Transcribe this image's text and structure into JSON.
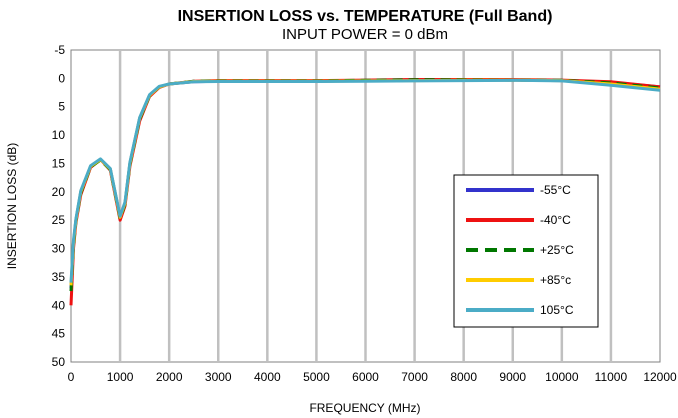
{
  "chart_data": {
    "type": "line",
    "title": "INSERTION LOSS vs. TEMPERATURE (Full Band)",
    "subtitle": "INPUT POWER = 0 dBm",
    "xlabel": "FREQUENCY (MHz)",
    "ylabel": "INSERTION LOSS (dB)",
    "xlim": [
      0,
      12000
    ],
    "ylim": [
      -5,
      50
    ],
    "y_inverted": true,
    "x_ticks": [
      0,
      1000,
      2000,
      3000,
      4000,
      5000,
      6000,
      7000,
      8000,
      9000,
      10000,
      11000,
      12000
    ],
    "y_ticks": [
      -5,
      0,
      5,
      10,
      15,
      20,
      25,
      30,
      35,
      40,
      45,
      50
    ],
    "grid": "vertical",
    "legend_position": "right",
    "series": [
      {
        "name": "-55°C",
        "color": "#3333CC",
        "dash": "solid",
        "x": [
          0,
          50,
          100,
          200,
          400,
          600,
          800,
          1000,
          1100,
          1200,
          1400,
          1600,
          1800,
          2000,
          2500,
          3000,
          4000,
          5000,
          6000,
          7000,
          8000,
          9000,
          10000,
          11000,
          12000
        ],
        "y": [
          37,
          29,
          25,
          20,
          15.5,
          14.3,
          16,
          24.5,
          22,
          15,
          7,
          3,
          1.5,
          1,
          0.6,
          0.5,
          0.5,
          0.5,
          0.4,
          0.3,
          0.3,
          0.3,
          0.4,
          0.7,
          1.5
        ]
      },
      {
        "name": "-40°C",
        "color": "#EE1111",
        "dash": "solid",
        "x": [
          0,
          50,
          100,
          200,
          400,
          600,
          800,
          1000,
          1100,
          1200,
          1400,
          1600,
          1800,
          2000,
          2500,
          3000,
          4000,
          5000,
          6000,
          7000,
          8000,
          9000,
          10000,
          11000,
          12000
        ],
        "y": [
          40,
          30,
          25.5,
          20.5,
          15.7,
          14.3,
          16.2,
          25,
          22.5,
          15.5,
          7.5,
          3.2,
          1.6,
          1,
          0.5,
          0.4,
          0.4,
          0.4,
          0.3,
          0.2,
          0.2,
          0.2,
          0.3,
          0.6,
          1.5
        ]
      },
      {
        "name": "+25°C",
        "color": "#007700",
        "dash": "dashed",
        "x": [
          0,
          50,
          100,
          200,
          400,
          600,
          800,
          1000,
          1100,
          1200,
          1400,
          1600,
          1800,
          2000,
          2500,
          3000,
          4000,
          5000,
          6000,
          7000,
          8000,
          9000,
          10000,
          11000,
          12000
        ],
        "y": [
          37.5,
          29.5,
          25.2,
          20.2,
          15.6,
          14.4,
          16.1,
          24.7,
          22.2,
          15.2,
          7.2,
          3.1,
          1.5,
          1,
          0.5,
          0.45,
          0.45,
          0.45,
          0.35,
          0.25,
          0.25,
          0.3,
          0.35,
          0.8,
          1.7
        ]
      },
      {
        "name": "+85°c",
        "color": "#FFCC00",
        "dash": "solid",
        "x": [
          0,
          50,
          100,
          200,
          400,
          600,
          800,
          1000,
          1100,
          1200,
          1400,
          1600,
          1800,
          2000,
          2500,
          3000,
          4000,
          5000,
          6000,
          7000,
          8000,
          9000,
          10000,
          11000,
          12000
        ],
        "y": [
          36.5,
          29,
          25,
          20,
          15.5,
          14.3,
          16,
          24.5,
          22,
          15,
          7,
          3,
          1.5,
          1,
          0.55,
          0.5,
          0.5,
          0.5,
          0.45,
          0.4,
          0.35,
          0.3,
          0.4,
          1,
          1.9
        ]
      },
      {
        "name": "105°C",
        "color": "#4BACC6",
        "dash": "solid",
        "x": [
          0,
          50,
          100,
          200,
          400,
          600,
          800,
          1000,
          1100,
          1200,
          1400,
          1600,
          1800,
          2000,
          2500,
          3000,
          4000,
          5000,
          6000,
          7000,
          8000,
          9000,
          10000,
          11000,
          12000
        ],
        "y": [
          36,
          28.5,
          24.8,
          19.8,
          15.4,
          14.2,
          15.9,
          24.3,
          21.8,
          14.8,
          6.9,
          2.9,
          1.4,
          1,
          0.6,
          0.55,
          0.55,
          0.55,
          0.5,
          0.45,
          0.4,
          0.35,
          0.45,
          1.2,
          2.1
        ]
      }
    ]
  }
}
